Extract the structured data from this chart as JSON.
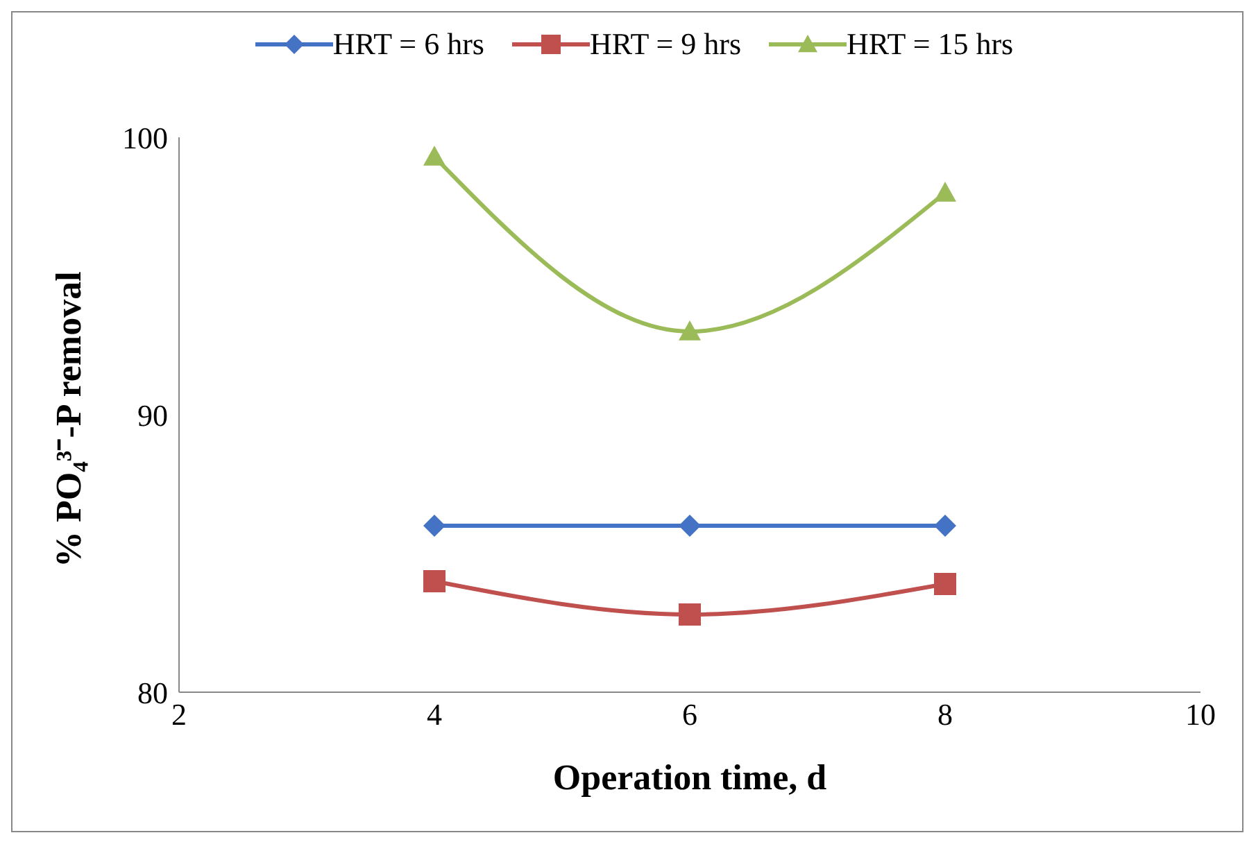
{
  "chart_data": {
    "type": "line",
    "xlabel": "Operation time, d",
    "ylabel": "% PO₄³⁻-P removal",
    "x": [
      4,
      6,
      8
    ],
    "series": [
      {
        "name": "HRT = 6 hrs",
        "color": "#4472c4",
        "values": [
          86,
          86,
          86
        ],
        "marker": "diamond"
      },
      {
        "name": "HRT = 9 hrs",
        "color": "#c0504d",
        "values": [
          84.0,
          82.8,
          83.9
        ],
        "marker": "square"
      },
      {
        "name": "HRT = 15 hrs",
        "color": "#9bbb59",
        "values": [
          99.3,
          93.0,
          98.0
        ],
        "marker": "triangle"
      }
    ],
    "xlim": [
      2,
      10
    ],
    "xticks": [
      2,
      4,
      6,
      8,
      10
    ],
    "ylim": [
      80,
      100
    ],
    "yticks": [
      80,
      90,
      100
    ],
    "grid": false,
    "legend": "top"
  }
}
